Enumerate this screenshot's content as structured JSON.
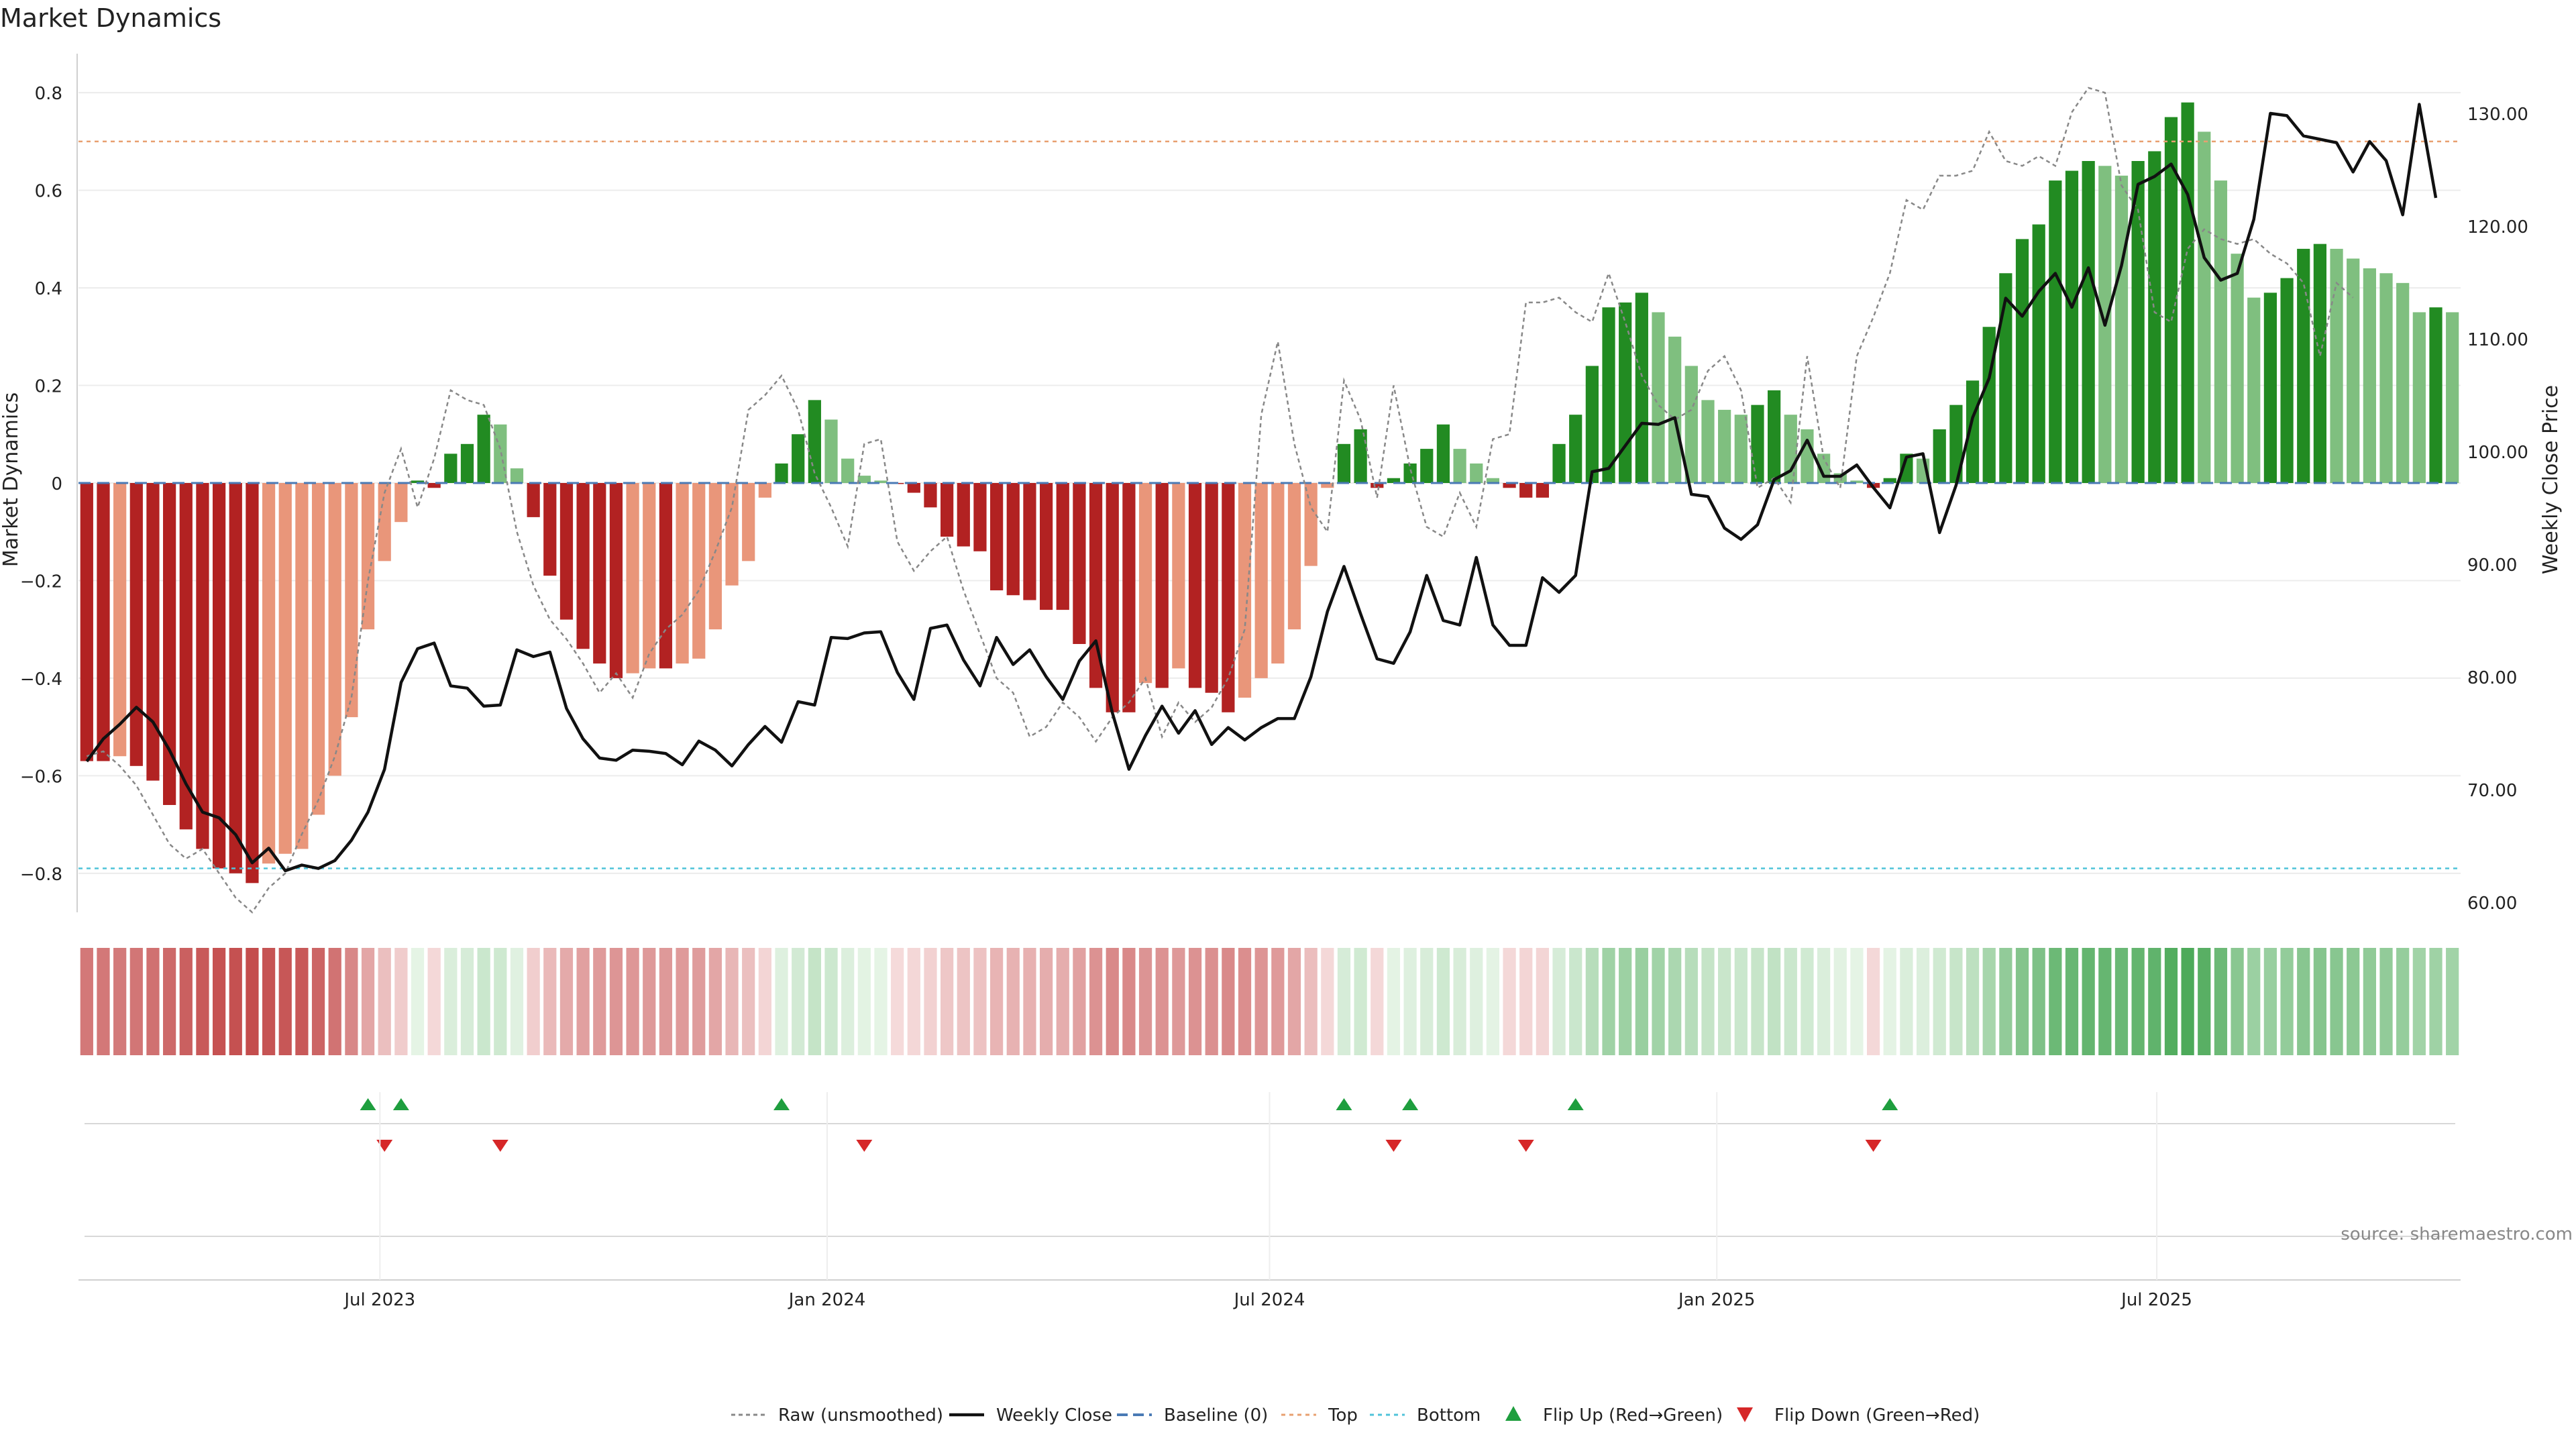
{
  "page": {
    "title": "Market Dynamics",
    "source": "source: sharemaestro.com"
  },
  "chart_data": {
    "type": "bar",
    "title": "Market Dynamics",
    "ylabel": "Market Dynamics",
    "y2label": "Weekly Close Price",
    "ylim": [
      -0.88,
      0.88
    ],
    "y2lim": [
      59,
      133
    ],
    "yticks": [
      0.8,
      0.6,
      0.4,
      0.2,
      0,
      -0.2,
      -0.4,
      -0.6,
      -0.8
    ],
    "yticklabels": [
      "0.8",
      "0.6",
      "0.4",
      "0.2",
      "0",
      "−0.2",
      "−0.4",
      "−0.6",
      "−0.8"
    ],
    "y2ticks": [
      130,
      120,
      110,
      100,
      90,
      80,
      70,
      60
    ],
    "y2ticklabels": [
      "130.00",
      "120.00",
      "110.00",
      "100.00",
      "90.00",
      "80.00",
      "70.00",
      "60.00"
    ],
    "x_start": "2023-02-27",
    "x_end": "2025-11-03",
    "xticks": [
      "2023-07-01",
      "2024-01-01",
      "2024-07-01",
      "2025-01-01",
      "2025-07-01"
    ],
    "xticklabels": [
      "Jul 2023",
      "Jan 2024",
      "Jul 2024",
      "Jan 2025",
      "Jul 2025"
    ],
    "legend_position": "bottom",
    "legend": [
      "Raw (unsmoothed)",
      "Weekly Close",
      "Baseline (0)",
      "Top",
      "Bottom",
      "Flip Up (Red→Green)",
      "Flip Down (Green→Red)"
    ],
    "thresholds": {
      "top": 0.7,
      "bottom": -0.79,
      "baseline": 0
    },
    "colors": {
      "dark_red": "#b22222",
      "light_red": "#e9967a",
      "dark_green": "#228b22",
      "light_green": "#7fbf7f",
      "close_line": "#111111",
      "raw_line": "#888888",
      "baseline": "#4a7ab5",
      "top": "#e8a070",
      "bottom": "#4fc3d9",
      "flip_up": "#1e9e3e",
      "flip_down": "#d62728"
    },
    "weeks": [
      "2023-02-27",
      "2025-10-27"
    ],
    "dynamics": [
      -0.57,
      -0.57,
      -0.56,
      -0.58,
      -0.61,
      -0.66,
      -0.71,
      -0.75,
      -0.79,
      -0.8,
      -0.82,
      -0.78,
      -0.76,
      -0.75,
      -0.68,
      -0.6,
      -0.48,
      -0.3,
      -0.16,
      -0.08,
      0.005,
      -0.01,
      0.06,
      0.08,
      0.14,
      0.12,
      0.03,
      -0.07,
      -0.19,
      -0.28,
      -0.34,
      -0.37,
      -0.4,
      -0.39,
      -0.38,
      -0.38,
      -0.37,
      -0.36,
      -0.3,
      -0.21,
      -0.16,
      -0.03,
      0.04,
      0.1,
      0.17,
      0.13,
      0.05,
      0.015,
      0.005,
      -0.001,
      -0.02,
      -0.05,
      -0.11,
      -0.13,
      -0.14,
      -0.22,
      -0.23,
      -0.24,
      -0.26,
      -0.26,
      -0.33,
      -0.42,
      -0.47,
      -0.47,
      -0.41,
      -0.42,
      -0.38,
      -0.42,
      -0.43,
      -0.47,
      -0.44,
      -0.4,
      -0.37,
      -0.3,
      -0.17,
      -0.01,
      0.08,
      0.11,
      -0.01,
      0.01,
      0.04,
      0.07,
      0.12,
      0.07,
      0.04,
      0.01,
      -0.01,
      -0.03,
      -0.03,
      0.08,
      0.14,
      0.24,
      0.36,
      0.37,
      0.39,
      0.35,
      0.3,
      0.24,
      0.17,
      0.15,
      0.14,
      0.16,
      0.19,
      0.14,
      0.11,
      0.06,
      0.02,
      0.005,
      -0.01,
      0.01,
      0.06,
      0.05,
      0.11,
      0.16,
      0.21,
      0.32,
      0.43,
      0.5,
      0.53,
      0.62,
      0.64,
      0.66,
      0.65,
      0.63,
      0.66,
      0.68,
      0.75,
      0.78,
      0.72,
      0.62,
      0.47,
      0.38,
      0.39,
      0.42,
      0.48,
      0.49,
      0.48,
      0.46,
      0.44,
      0.43,
      0.41,
      0.35,
      0.36,
      0.35
    ],
    "raw": [
      -0.56,
      -0.55,
      -0.58,
      -0.62,
      -0.68,
      -0.74,
      -0.77,
      -0.75,
      -0.8,
      -0.85,
      -0.88,
      -0.83,
      -0.8,
      -0.72,
      -0.65,
      -0.56,
      -0.44,
      -0.2,
      -0.02,
      0.07,
      -0.05,
      0.05,
      0.19,
      0.17,
      0.16,
      0.07,
      -0.1,
      -0.21,
      -0.28,
      -0.32,
      -0.37,
      -0.43,
      -0.39,
      -0.44,
      -0.35,
      -0.3,
      -0.27,
      -0.22,
      -0.14,
      -0.05,
      0.15,
      0.18,
      0.22,
      0.15,
      0.02,
      -0.05,
      -0.13,
      0.08,
      0.09,
      -0.12,
      -0.18,
      -0.14,
      -0.11,
      -0.22,
      -0.31,
      -0.4,
      -0.43,
      -0.52,
      -0.5,
      -0.45,
      -0.48,
      -0.53,
      -0.48,
      -0.45,
      -0.4,
      -0.52,
      -0.45,
      -0.49,
      -0.46,
      -0.4,
      -0.3,
      0.14,
      0.29,
      0.08,
      -0.05,
      -0.1,
      0.21,
      0.13,
      -0.03,
      0.2,
      0.03,
      -0.09,
      -0.11,
      -0.02,
      -0.09,
      0.09,
      0.1,
      0.37,
      0.37,
      0.38,
      0.35,
      0.33,
      0.43,
      0.33,
      0.22,
      0.16,
      0.13,
      0.15,
      0.23,
      0.26,
      0.19,
      -0.01,
      0.01,
      -0.04,
      0.26,
      0.05,
      -0.01,
      0.26,
      0.34,
      0.43,
      0.58,
      0.56,
      0.63,
      0.63,
      0.64,
      0.72,
      0.66,
      0.65,
      0.67,
      0.65,
      0.76,
      0.81,
      0.8,
      0.61,
      0.56,
      0.35,
      0.33,
      0.48,
      0.52,
      0.5,
      0.49,
      0.5,
      0.47,
      0.45,
      0.41,
      0.26,
      0.41,
      0.38
    ],
    "close": [
      72.5,
      74.5,
      75.8,
      77.3,
      76.0,
      73.5,
      70.5,
      68.0,
      67.5,
      66.0,
      63.5,
      64.8,
      62.8,
      63.3,
      63.0,
      63.7,
      65.5,
      68.0,
      71.8,
      79.5,
      82.5,
      83.0,
      79.2,
      79.0,
      77.4,
      77.5,
      82.4,
      81.8,
      82.2,
      77.2,
      74.5,
      72.8,
      72.6,
      73.5,
      73.4,
      73.2,
      72.2,
      74.3,
      73.5,
      72.1,
      74.0,
      75.6,
      74.2,
      77.8,
      77.5,
      83.5,
      83.4,
      83.9,
      84.0,
      80.4,
      78.0,
      84.3,
      84.6,
      81.5,
      79.2,
      83.5,
      81.1,
      82.4,
      80.0,
      78.0,
      81.4,
      83.2,
      76.8,
      71.8,
      74.8,
      77.4,
      75.0,
      77.0,
      74.0,
      75.5,
      74.4,
      75.5,
      76.3,
      76.3,
      80.0,
      85.8,
      89.8,
      85.6,
      81.6,
      81.2,
      84.0,
      89.0,
      85.0,
      84.6,
      90.6,
      84.6,
      82.8,
      82.8,
      88.8,
      87.5,
      89.0,
      98.2,
      98.5,
      100.5,
      102.5,
      102.4,
      103.0,
      96.2,
      96.0,
      93.2,
      92.2,
      93.5,
      97.5,
      98.3,
      101.0,
      97.8,
      97.8,
      98.8,
      96.8,
      95.0,
      99.5,
      99.8,
      92.8,
      97.0,
      103.0,
      106.5,
      113.6,
      112.0,
      114.2,
      115.8,
      112.8,
      116.3,
      111.2,
      116.5,
      123.7,
      124.4,
      125.5,
      122.8,
      117.2,
      115.2,
      115.8,
      120.6,
      130.0,
      129.8,
      128.0,
      127.7,
      127.4,
      124.8,
      127.5,
      125.8,
      121.0,
      130.8,
      122.5
    ],
    "flip_up": [
      "2023-06-26",
      "2023-07-10",
      "2023-12-18",
      "2024-08-12",
      "2024-09-09",
      "2024-11-18",
      "2025-03-31"
    ],
    "flip_down": [
      "2023-07-03",
      "2023-08-21",
      "2024-01-22",
      "2024-09-02",
      "2024-10-28",
      "2025-03-24"
    ]
  }
}
